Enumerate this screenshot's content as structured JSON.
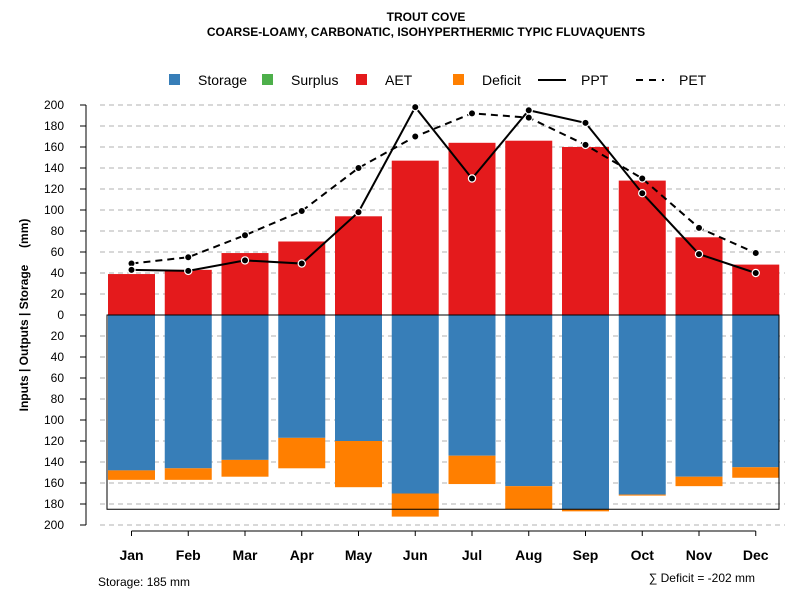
{
  "chart_data": {
    "type": "bar",
    "title": "TROUT COVE",
    "subtitle": "COARSE-LOAMY, CARBONATIC, ISOHYPERTHERMIC TYPIC FLUVAQUENTS",
    "ylabel": "Inputs | Outputs | Storage     (mm)",
    "ylim": [
      -200,
      200
    ],
    "yticks": [
      200,
      180,
      160,
      140,
      120,
      100,
      80,
      60,
      40,
      20,
      0,
      20,
      40,
      60,
      80,
      100,
      120,
      140,
      160,
      180,
      200
    ],
    "categories": [
      "Jan",
      "Feb",
      "Mar",
      "Apr",
      "May",
      "Jun",
      "Jul",
      "Aug",
      "Sep",
      "Oct",
      "Nov",
      "Dec"
    ],
    "legend": [
      {
        "name": "Storage",
        "kind": "box",
        "color": "#377EB8"
      },
      {
        "name": "Surplus",
        "kind": "box",
        "color": "#4DAF4A"
      },
      {
        "name": "AET",
        "kind": "box",
        "color": "#E41A1C"
      },
      {
        "name": "Deficit",
        "kind": "box",
        "color": "#FF7F00"
      },
      {
        "name": "PPT",
        "kind": "solid",
        "color": "#000000"
      },
      {
        "name": "PET",
        "kind": "dashed",
        "color": "#000000"
      }
    ],
    "series": [
      {
        "name": "AET",
        "values": [
          39,
          43,
          59,
          70,
          94,
          147,
          164,
          166,
          160,
          128,
          74,
          48
        ]
      },
      {
        "name": "Storage",
        "values": [
          148,
          146,
          138,
          117,
          120,
          170,
          134,
          163,
          185,
          171,
          154,
          145
        ]
      },
      {
        "name": "Deficit",
        "values": [
          9,
          11,
          16,
          29,
          44,
          22,
          27,
          22,
          2,
          1,
          9,
          10
        ]
      },
      {
        "name": "Surplus",
        "values": [
          0,
          0,
          0,
          0,
          0,
          0,
          0,
          0,
          0,
          0,
          0,
          0
        ]
      },
      {
        "name": "PPT",
        "values": [
          43,
          42,
          52,
          49,
          98,
          198,
          130,
          195,
          183,
          116,
          58,
          40
        ]
      },
      {
        "name": "PET",
        "values": [
          49,
          55,
          76,
          99,
          140,
          170,
          192,
          188,
          162,
          130,
          83,
          59
        ]
      }
    ],
    "storage_capacity": 185,
    "footer_storage": "Storage: 185 mm",
    "footer_deficit": "∑ Deficit = -202 mm"
  }
}
